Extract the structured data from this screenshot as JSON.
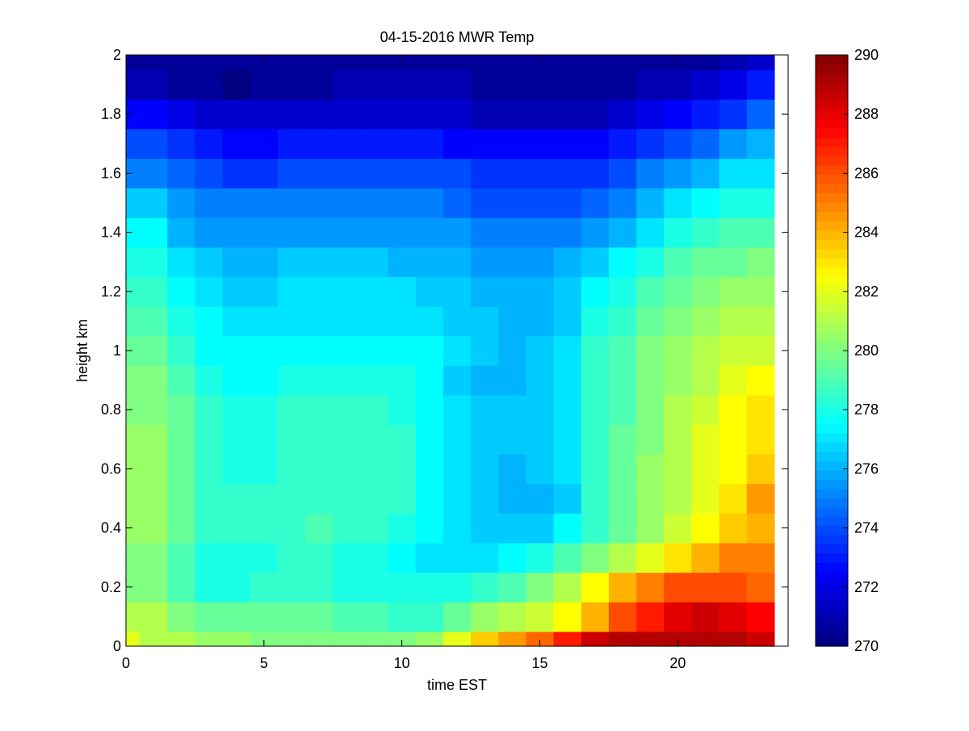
{
  "chart_data": {
    "type": "heatmap",
    "title": "04-15-2016 MWR Temp",
    "xlabel": "time EST",
    "ylabel": "height km",
    "xlim": [
      0,
      24
    ],
    "ylim": [
      0,
      2
    ],
    "xticks": [
      0,
      5,
      10,
      15,
      20
    ],
    "xtick_labels": [
      "0",
      "5",
      "10",
      "15",
      "20"
    ],
    "yticks": [
      0,
      0.2,
      0.4,
      0.6,
      0.8,
      1,
      1.2,
      1.4,
      1.6,
      1.8,
      2
    ],
    "ytick_labels": [
      "0",
      "0.2",
      "0.4",
      "0.6",
      "0.8",
      "1",
      "1.2",
      "1.4",
      "1.6",
      "1.8",
      "2"
    ],
    "x_bin_edges": [
      0,
      0.5,
      1.5,
      2.5,
      3.5,
      4.5,
      5.5,
      6.5,
      7.5,
      8.5,
      9.5,
      10.5,
      11.5,
      12.5,
      13.5,
      14.5,
      15.5,
      16.5,
      17.5,
      18.5,
      19.5,
      20.5,
      21.5,
      22.5,
      23.5
    ],
    "y_bin_edges": [
      0,
      0.05,
      0.15,
      0.25,
      0.35,
      0.45,
      0.55,
      0.65,
      0.75,
      0.85,
      0.95,
      1.05,
      1.15,
      1.25,
      1.35,
      1.45,
      1.55,
      1.65,
      1.75,
      1.85,
      1.95,
      2
    ],
    "values_K": [
      [
        282.0,
        281.0,
        281.0,
        280.5,
        280.5,
        280.0,
        280.0,
        280.0,
        280.0,
        280.0,
        280.0,
        280.5,
        282.0,
        283.5,
        284.5,
        285.5,
        287.0,
        288.5,
        289.0,
        289.0,
        289.0,
        289.0,
        289.0,
        288.5
      ],
      [
        281.0,
        281.0,
        280.0,
        279.5,
        279.5,
        279.5,
        279.5,
        279.5,
        279.0,
        279.0,
        278.5,
        278.5,
        279.5,
        280.5,
        281.0,
        281.5,
        282.5,
        284.0,
        286.0,
        287.0,
        288.0,
        288.5,
        288.0,
        287.5
      ],
      [
        280.0,
        280.0,
        279.0,
        278.0,
        278.0,
        278.5,
        278.5,
        278.5,
        278.0,
        278.0,
        278.0,
        278.0,
        278.0,
        278.5,
        279.0,
        280.0,
        281.0,
        282.5,
        284.0,
        285.0,
        286.0,
        286.0,
        286.0,
        285.5
      ],
      [
        280.0,
        280.0,
        279.0,
        278.0,
        278.0,
        278.0,
        278.5,
        278.5,
        278.0,
        278.0,
        277.5,
        277.0,
        277.0,
        277.0,
        277.5,
        278.0,
        279.0,
        280.0,
        281.0,
        282.0,
        283.0,
        284.0,
        285.0,
        285.0
      ],
      [
        280.5,
        280.5,
        279.5,
        278.5,
        278.5,
        278.5,
        278.5,
        279.0,
        278.5,
        278.5,
        278.0,
        277.5,
        277.0,
        276.5,
        276.5,
        276.5,
        277.5,
        278.5,
        279.5,
        280.5,
        281.5,
        282.5,
        283.5,
        284.0
      ],
      [
        280.5,
        280.5,
        279.5,
        278.5,
        278.5,
        278.5,
        278.5,
        278.5,
        278.5,
        278.5,
        278.5,
        277.5,
        277.0,
        276.5,
        276.0,
        276.0,
        276.5,
        278.5,
        279.5,
        280.5,
        281.0,
        282.0,
        283.0,
        284.5
      ],
      [
        280.5,
        280.5,
        279.5,
        278.5,
        278.0,
        278.0,
        278.5,
        278.5,
        278.5,
        278.5,
        278.5,
        277.5,
        277.0,
        276.5,
        276.0,
        276.5,
        277.0,
        278.5,
        279.5,
        280.5,
        281.0,
        282.0,
        282.5,
        283.5
      ],
      [
        280.5,
        280.5,
        279.5,
        278.5,
        278.0,
        278.0,
        278.5,
        278.5,
        278.5,
        278.5,
        278.5,
        277.5,
        277.0,
        276.5,
        276.5,
        276.5,
        277.0,
        278.5,
        279.5,
        280.0,
        281.0,
        282.0,
        282.5,
        283.0
      ],
      [
        280.0,
        280.0,
        279.5,
        278.5,
        278.0,
        278.0,
        278.5,
        278.5,
        278.5,
        278.5,
        278.0,
        277.5,
        277.0,
        276.5,
        276.5,
        276.5,
        277.0,
        278.5,
        279.0,
        280.0,
        281.0,
        281.5,
        282.5,
        283.0
      ],
      [
        280.0,
        280.0,
        279.0,
        278.0,
        277.5,
        277.5,
        278.0,
        278.0,
        278.0,
        278.0,
        278.0,
        277.5,
        276.5,
        276.0,
        276.0,
        276.5,
        277.0,
        278.5,
        279.0,
        280.0,
        280.5,
        281.0,
        282.0,
        282.5
      ],
      [
        279.5,
        279.5,
        278.5,
        277.5,
        277.5,
        277.5,
        277.5,
        277.5,
        277.5,
        277.5,
        277.5,
        277.5,
        277.0,
        276.5,
        276.0,
        276.5,
        277.0,
        278.5,
        279.0,
        280.0,
        280.5,
        281.0,
        281.5,
        281.5
      ],
      [
        279.0,
        279.0,
        278.0,
        277.5,
        277.0,
        277.0,
        277.0,
        277.0,
        277.0,
        277.0,
        277.0,
        277.0,
        276.5,
        276.5,
        276.0,
        276.0,
        276.5,
        278.0,
        278.5,
        279.5,
        280.0,
        280.5,
        281.0,
        281.0
      ],
      [
        278.5,
        278.5,
        277.5,
        277.0,
        276.5,
        276.5,
        277.0,
        277.0,
        277.0,
        277.0,
        277.0,
        276.5,
        276.5,
        276.0,
        276.0,
        276.0,
        276.5,
        277.5,
        278.0,
        279.0,
        279.5,
        280.0,
        280.5,
        280.5
      ],
      [
        278.0,
        278.0,
        277.0,
        276.5,
        276.0,
        276.0,
        276.5,
        276.5,
        276.5,
        276.5,
        276.0,
        276.0,
        276.0,
        275.5,
        275.5,
        275.5,
        276.0,
        276.5,
        277.5,
        278.0,
        279.0,
        279.5,
        279.5,
        280.0
      ],
      [
        277.5,
        277.5,
        276.0,
        275.5,
        275.5,
        275.5,
        275.5,
        275.5,
        275.5,
        275.5,
        275.5,
        275.5,
        275.5,
        275.0,
        275.0,
        275.0,
        275.0,
        275.5,
        276.0,
        277.0,
        278.0,
        278.5,
        279.0,
        279.0
      ],
      [
        276.5,
        276.5,
        275.5,
        275.0,
        275.0,
        275.0,
        275.0,
        275.0,
        275.0,
        275.0,
        275.0,
        275.0,
        274.5,
        274.0,
        274.0,
        274.0,
        274.0,
        274.5,
        275.0,
        276.0,
        277.0,
        277.5,
        278.0,
        278.0
      ],
      [
        275.0,
        275.0,
        274.5,
        274.0,
        273.5,
        273.5,
        274.0,
        274.0,
        274.0,
        274.0,
        274.0,
        274.0,
        274.0,
        273.5,
        273.5,
        273.5,
        273.5,
        273.5,
        274.0,
        275.0,
        275.5,
        276.0,
        277.0,
        277.0
      ],
      [
        274.0,
        274.0,
        273.5,
        273.0,
        272.5,
        272.5,
        273.0,
        273.0,
        273.0,
        273.0,
        273.0,
        273.0,
        272.5,
        272.5,
        272.5,
        272.5,
        272.5,
        272.5,
        273.0,
        273.5,
        274.0,
        274.5,
        275.5,
        276.0
      ],
      [
        272.5,
        272.5,
        272.0,
        271.5,
        271.5,
        271.5,
        271.5,
        271.5,
        271.5,
        271.5,
        271.5,
        271.5,
        271.5,
        271.0,
        271.0,
        271.0,
        271.0,
        271.0,
        271.5,
        272.0,
        272.5,
        273.0,
        273.5,
        274.5
      ],
      [
        271.0,
        271.0,
        270.5,
        270.5,
        270.0,
        270.5,
        270.5,
        270.5,
        271.0,
        271.0,
        271.0,
        271.0,
        271.0,
        270.5,
        270.5,
        270.5,
        270.5,
        270.5,
        270.5,
        271.0,
        271.0,
        271.5,
        272.0,
        273.0
      ],
      [
        270.5,
        270.5,
        270.5,
        270.5,
        270.5,
        270.5,
        270.5,
        270.5,
        270.5,
        270.5,
        270.5,
        270.5,
        270.5,
        270.5,
        270.5,
        270.5,
        270.5,
        270.5,
        270.5,
        270.5,
        270.5,
        270.5,
        271.0,
        271.5
      ]
    ],
    "colorbar": {
      "min": 270,
      "max": 290,
      "ticks": [
        270,
        272,
        274,
        276,
        278,
        280,
        282,
        284,
        286,
        288,
        290
      ],
      "tick_labels": [
        "270",
        "272",
        "274",
        "276",
        "278",
        "280",
        "282",
        "284",
        "286",
        "288",
        "290"
      ],
      "colormap": "jet"
    },
    "grid": false,
    "legend": "none"
  }
}
